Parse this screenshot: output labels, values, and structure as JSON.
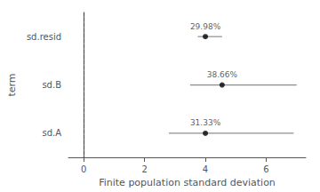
{
  "chart_data": {
    "type": "forest",
    "categories": [
      "sd.resid",
      "sd.B",
      "sd.A"
    ],
    "values": [
      4.0,
      4.55,
      4.0
    ],
    "ci_low": [
      3.75,
      3.5,
      2.8
    ],
    "ci_high": [
      4.55,
      7.0,
      6.9
    ],
    "annotations": [
      "29.98%",
      "38.66%",
      "31.33%"
    ],
    "reference_line": 0,
    "xlim": [
      -0.5,
      7.3
    ],
    "xticks": [
      0,
      2,
      4,
      6
    ],
    "xlabel": "Finite population standard deviation",
    "ylabel": "term",
    "color": "#000000",
    "grid": false
  }
}
